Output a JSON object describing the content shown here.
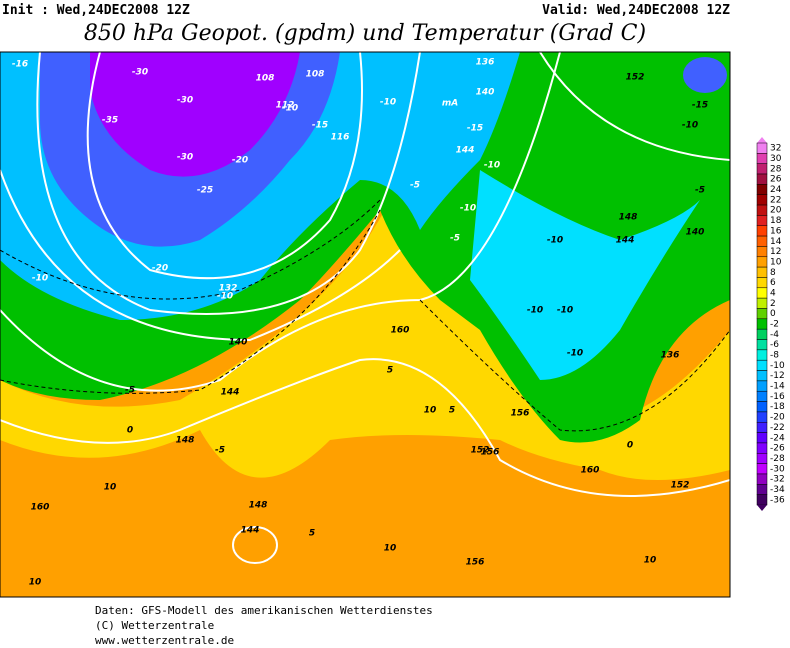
{
  "header": {
    "init": "Init : Wed,24DEC2008 12Z",
    "valid": "Valid: Wed,24DEC2008 12Z",
    "title": "850 hPa Geopot. (gpdm) und Temperatur (Grad C)"
  },
  "map_labels": [
    "-16",
    "-30",
    "-30",
    "-35",
    "-30",
    "-25",
    "-20",
    "-10",
    "-15",
    "-20",
    "-10",
    "112",
    "108",
    "108",
    "116",
    "-10",
    "mA",
    "136",
    "140",
    "-15",
    "144",
    "-10",
    "-5",
    "-10",
    "-5",
    "152",
    "-15",
    "-10",
    "-5",
    "148",
    "144",
    "140",
    "136",
    "-10",
    "-10",
    "-10",
    "-10",
    "132",
    "140",
    "-5",
    "0",
    "144",
    "148",
    "160",
    "156",
    "160",
    "5",
    "10",
    "5",
    "156",
    "152",
    "10",
    "148",
    "144",
    "5",
    "10",
    "160",
    "156",
    "10",
    "152",
    "10",
    "-10",
    "0",
    "-5"
  ],
  "colorbar": [
    {
      "value": 32,
      "color": "#f080f0"
    },
    {
      "value": 30,
      "color": "#e040b0"
    },
    {
      "value": 28,
      "color": "#c02070"
    },
    {
      "value": 26,
      "color": "#a01040"
    },
    {
      "value": 24,
      "color": "#800000"
    },
    {
      "value": 22,
      "color": "#a00000"
    },
    {
      "value": 20,
      "color": "#c01010"
    },
    {
      "value": 18,
      "color": "#e02020"
    },
    {
      "value": 16,
      "color": "#ff4000"
    },
    {
      "value": 14,
      "color": "#ff6000"
    },
    {
      "value": 12,
      "color": "#ff8000"
    },
    {
      "value": 10,
      "color": "#ffa000"
    },
    {
      "value": 8,
      "color": "#ffc000"
    },
    {
      "value": 6,
      "color": "#ffd800"
    },
    {
      "value": 4,
      "color": "#ffff00"
    },
    {
      "value": 2,
      "color": "#c0f000"
    },
    {
      "value": 0,
      "color": "#60d000"
    },
    {
      "value": -2,
      "color": "#00c000"
    },
    {
      "value": -4,
      "color": "#00d060"
    },
    {
      "value": -6,
      "color": "#00e0a0"
    },
    {
      "value": -8,
      "color": "#00f0e0"
    },
    {
      "value": -10,
      "color": "#00e0ff"
    },
    {
      "value": -12,
      "color": "#00c0ff"
    },
    {
      "value": -14,
      "color": "#00a0ff"
    },
    {
      "value": -16,
      "color": "#0080ff"
    },
    {
      "value": -18,
      "color": "#0060ff"
    },
    {
      "value": -20,
      "color": "#2040ff"
    },
    {
      "value": -22,
      "color": "#4020ff"
    },
    {
      "value": -24,
      "color": "#6000ff"
    },
    {
      "value": -26,
      "color": "#8000ff"
    },
    {
      "value": -28,
      "color": "#a000ff"
    },
    {
      "value": -30,
      "color": "#c000ff"
    },
    {
      "value": -32,
      "color": "#9000c0"
    },
    {
      "value": -34,
      "color": "#600090"
    },
    {
      "value": -36,
      "color": "#400060"
    }
  ],
  "footer": [
    "Daten: GFS-Modell des amerikanischen Wetterdienstes",
    "(C) Wetterzentrale",
    "www.wetterzentrale.de"
  ]
}
